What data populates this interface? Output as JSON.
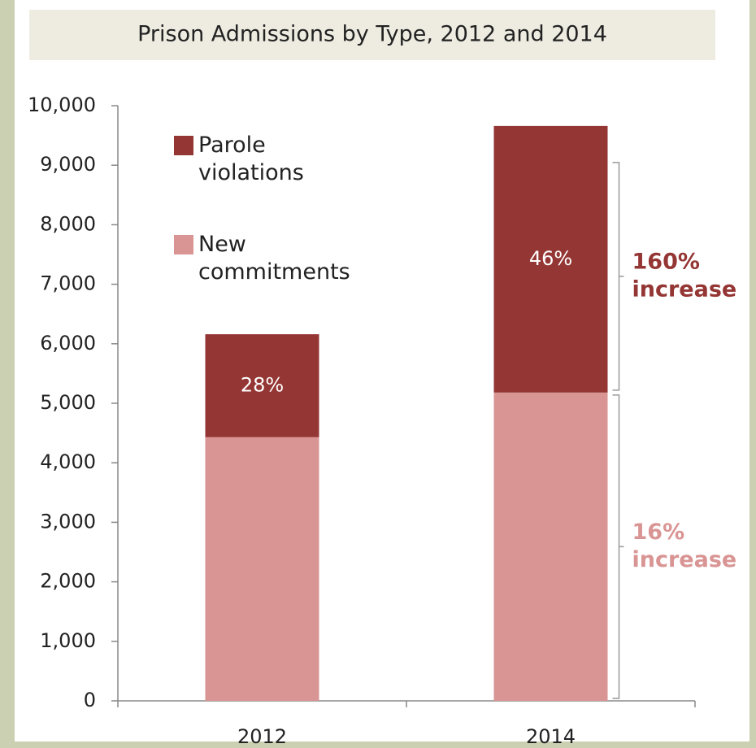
{
  "chart_data": {
    "type": "stacked_bar",
    "title": "Prison Admissions by Type, 2012 and 2014",
    "categories": [
      "2012",
      "2014"
    ],
    "series": [
      {
        "name": "New commitments",
        "color": "#d99594",
        "values": [
          4430,
          5180
        ]
      },
      {
        "name": "Parole violations",
        "color": "#943634",
        "values": [
          1730,
          4480
        ]
      }
    ],
    "segment_labels": [
      "28%",
      "46%"
    ],
    "annotations": [
      {
        "lines": [
          "16%",
          "increase"
        ],
        "color": "#d99594"
      },
      {
        "lines": [
          "160%",
          "increase"
        ],
        "color": "#943634"
      }
    ],
    "ylim": [
      0,
      10000
    ],
    "yticks": [
      0,
      {
        "value": 1000,
        "label": "1,000"
      },
      {
        "value": 2000,
        "label": "2,000"
      },
      {
        "value": 3000,
        "label": "3,000"
      },
      {
        "value": 4000,
        "label": "4,000"
      },
      {
        "value": 5000,
        "label": "5,000"
      },
      {
        "value": 6000,
        "label": "6,000"
      },
      {
        "value": 7000,
        "label": "7,000"
      },
      {
        "value": 8000,
        "label": "8,000"
      },
      {
        "value": 9000,
        "label": "9,000"
      },
      {
        "value": 10000,
        "label": "10,000"
      }
    ],
    "legend": "upper left"
  }
}
